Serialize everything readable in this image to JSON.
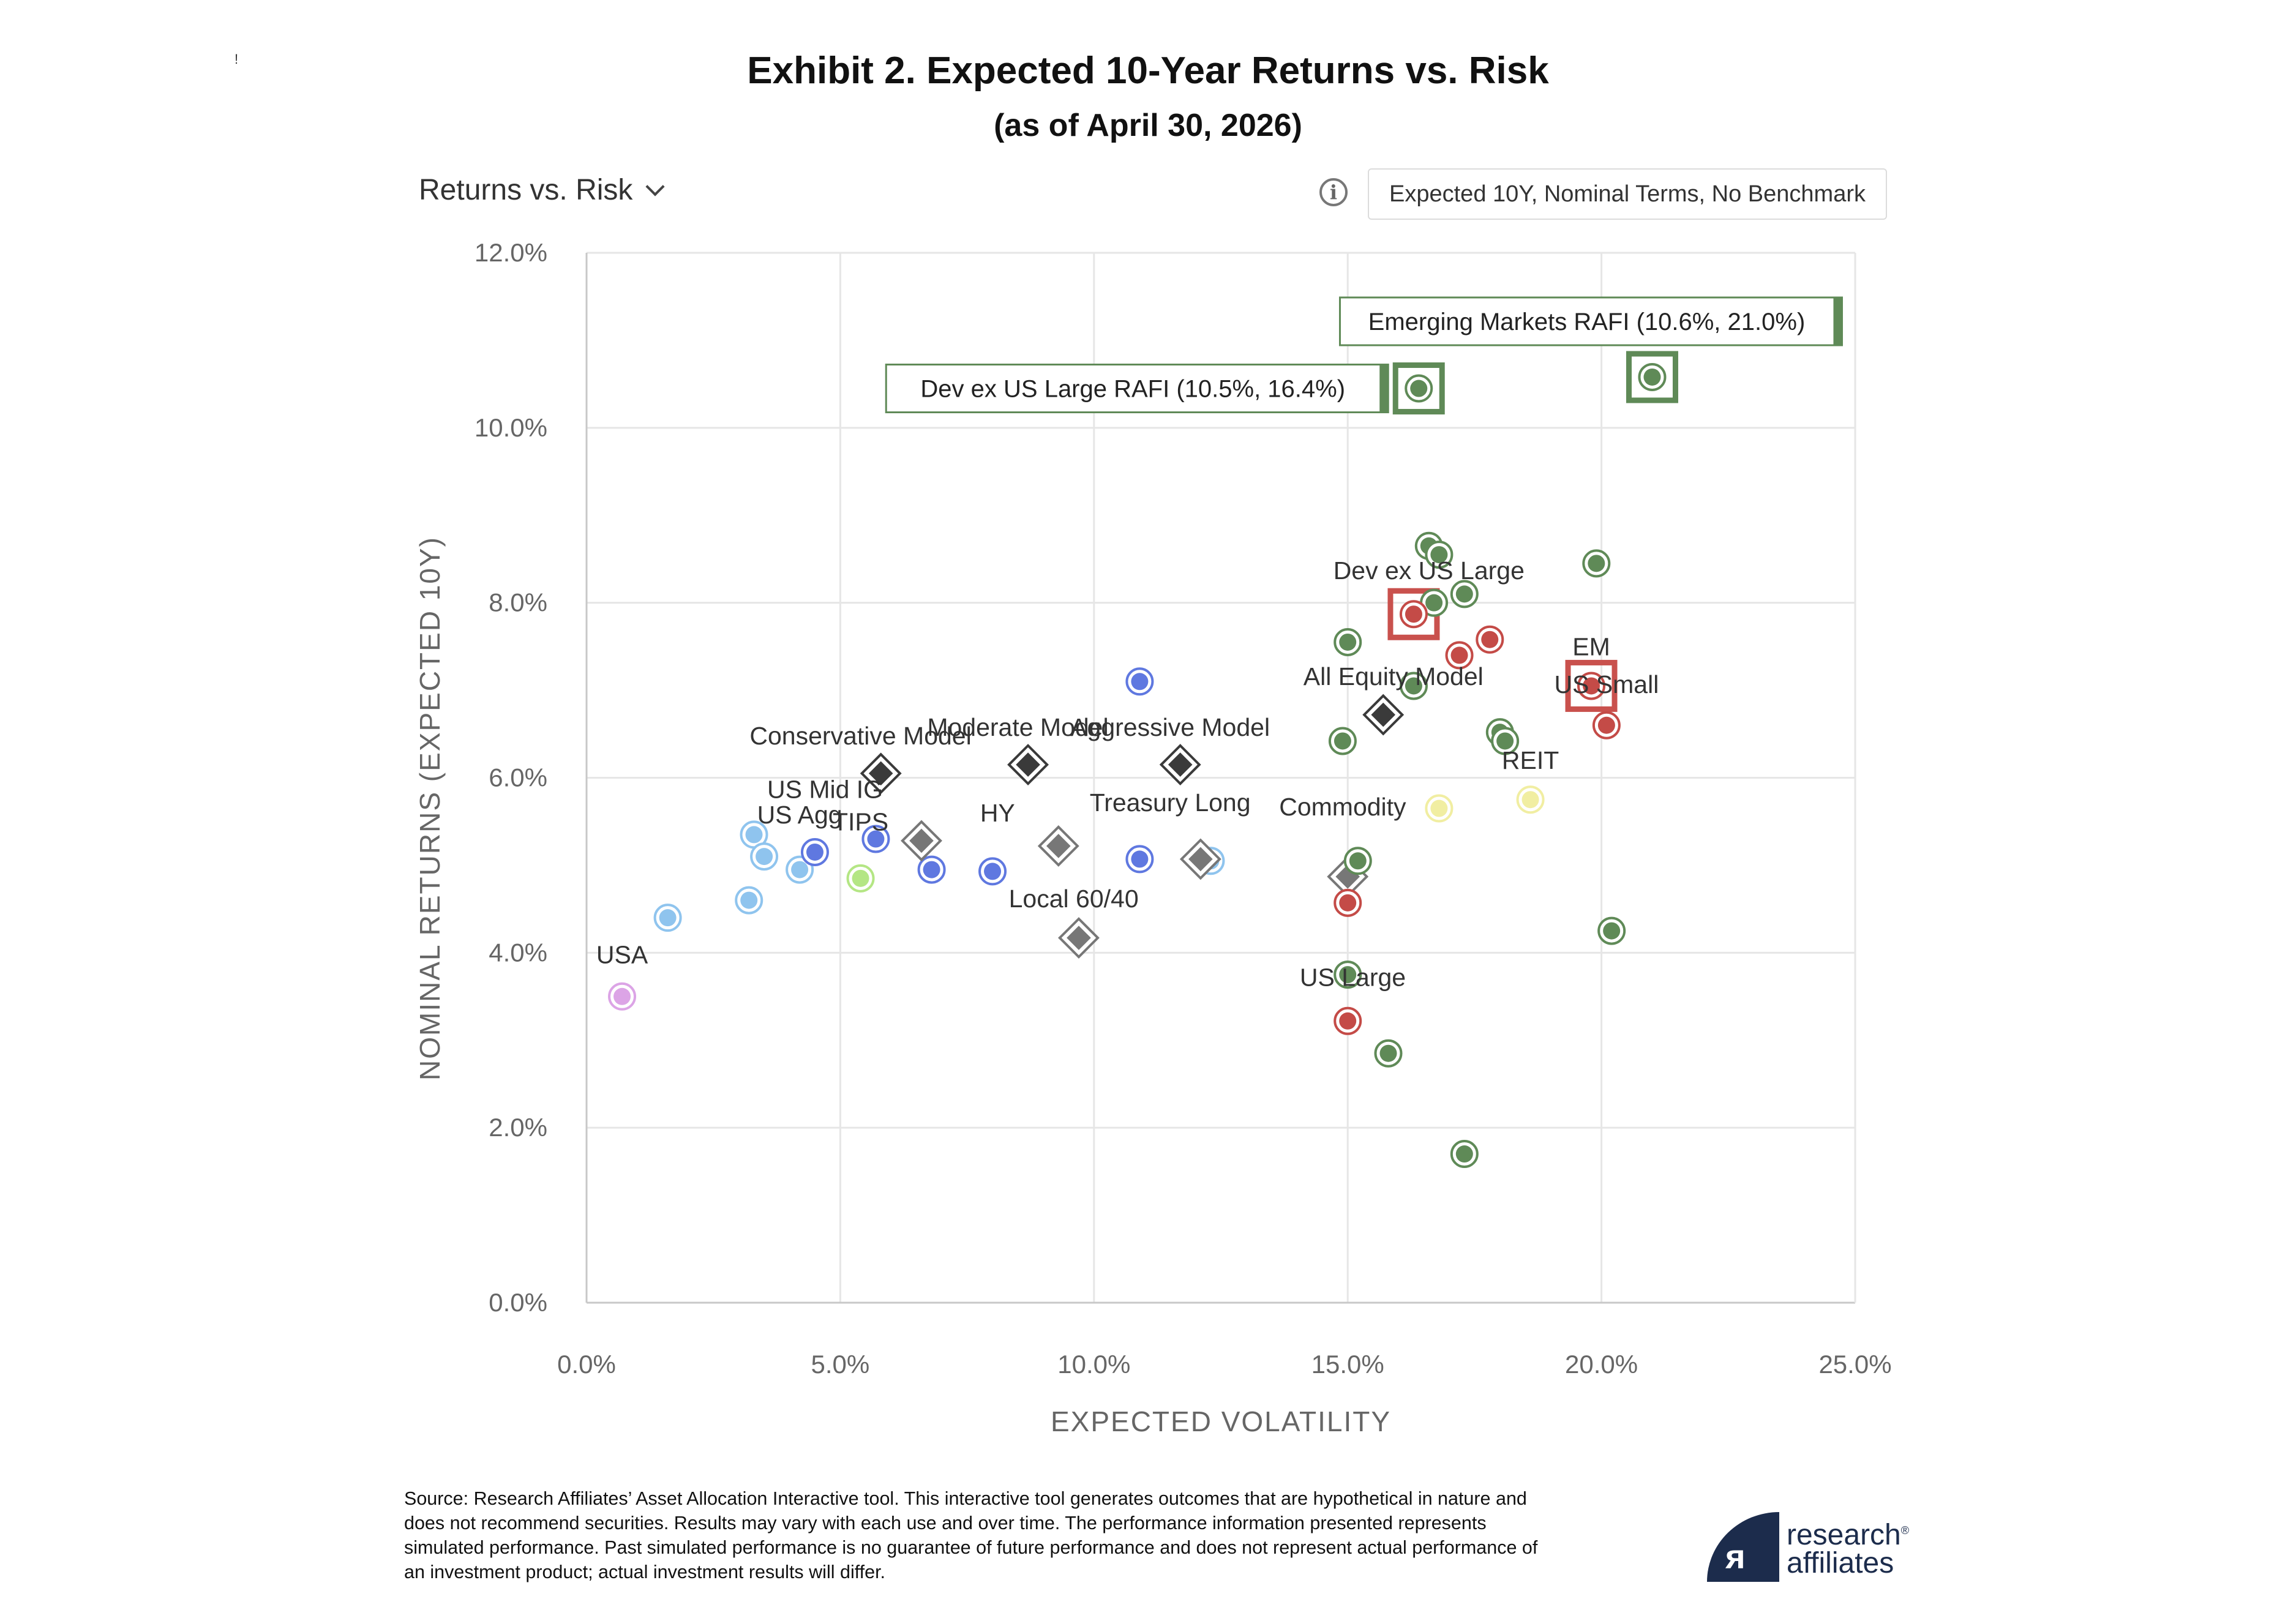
{
  "page": {
    "corner_mark": "!",
    "title": "Exhibit 2. Expected 10-Year Returns vs. Risk",
    "subtitle": "(as of April 30, 2026)",
    "view_select": "Returns vs. Risk",
    "info_icon": "info-icon",
    "settings_label": "Expected 10Y, Nominal Terms, No Benchmark",
    "footnote": "Source: Research Affiliates’ Asset Allocation Interactive tool. This interactive tool generates outcomes that are hypothetical in nature and does not recommend securities. Results may vary with each use and over time. The performance information presented represents simulated performance. Past simulated performance is no guarantee of future performance and does not represent actual performance of an investment product; actual investment results will differ.",
    "logo": {
      "line1": "research",
      "line2": "affiliates",
      "mark": "ᴙ",
      "reg": "®"
    },
    "colors": {
      "equity_green": "#5f8a57",
      "core_red": "#c44b47",
      "bond_blue": "#5f78e0",
      "bond_lightblue": "#8fc4ee",
      "tips_green": "#b4e684",
      "commodity_yellow": "#f1eea2",
      "usa_purple": "#dca4e6",
      "model_dark": "#3a3a3a",
      "model_gray": "#777777",
      "highlight_green": "#5f8a57",
      "highlight_red": "#c9514d"
    }
  },
  "chart_data": {
    "type": "scatter",
    "xlabel": "EXPECTED VOLATILITY",
    "ylabel": "NOMINAL RETURNS (EXPECTED 10Y)",
    "xlim": [
      0,
      25
    ],
    "ylim": [
      0,
      12
    ],
    "xticks": [
      0,
      5,
      10,
      15,
      20,
      25
    ],
    "yticks": [
      0,
      2,
      4,
      6,
      8,
      10,
      12
    ],
    "xtick_labels": [
      "0.0%",
      "5.0%",
      "10.0%",
      "15.0%",
      "20.0%",
      "25.0%"
    ],
    "ytick_labels": [
      "0.0%",
      "2.0%",
      "4.0%",
      "6.0%",
      "8.0%",
      "10.0%",
      "12.0%"
    ],
    "grid": true,
    "points": [
      {
        "x": 0.7,
        "y": 3.5,
        "shape": "circle",
        "color": "usa_purple"
      },
      {
        "x": 1.6,
        "y": 4.4,
        "shape": "circle",
        "color": "bond_lightblue"
      },
      {
        "x": 3.2,
        "y": 4.6,
        "shape": "circle",
        "color": "bond_lightblue"
      },
      {
        "x": 3.3,
        "y": 5.35,
        "shape": "circle",
        "color": "bond_lightblue"
      },
      {
        "x": 3.5,
        "y": 5.1,
        "shape": "circle",
        "color": "bond_lightblue"
      },
      {
        "x": 4.2,
        "y": 4.95,
        "shape": "circle",
        "color": "bond_lightblue"
      },
      {
        "x": 4.5,
        "y": 5.15,
        "shape": "circle",
        "color": "bond_blue"
      },
      {
        "x": 5.4,
        "y": 4.85,
        "shape": "circle",
        "color": "tips_green"
      },
      {
        "x": 5.7,
        "y": 5.3,
        "shape": "circle",
        "color": "bond_blue"
      },
      {
        "x": 6.8,
        "y": 4.95,
        "shape": "circle",
        "color": "bond_blue"
      },
      {
        "x": 8.0,
        "y": 4.93,
        "shape": "circle",
        "color": "bond_blue"
      },
      {
        "x": 10.9,
        "y": 7.1,
        "shape": "circle",
        "color": "bond_blue"
      },
      {
        "x": 10.9,
        "y": 5.07,
        "shape": "circle",
        "color": "bond_blue"
      },
      {
        "x": 12.3,
        "y": 5.05,
        "shape": "circle",
        "color": "bond_lightblue"
      },
      {
        "x": 5.8,
        "y": 6.05,
        "shape": "diamond",
        "color": "model_dark"
      },
      {
        "x": 8.7,
        "y": 6.15,
        "shape": "diamond",
        "color": "model_dark"
      },
      {
        "x": 11.7,
        "y": 6.15,
        "shape": "diamond",
        "color": "model_dark"
      },
      {
        "x": 15.7,
        "y": 6.72,
        "shape": "diamond",
        "color": "model_dark"
      },
      {
        "x": 6.6,
        "y": 5.28,
        "shape": "diamond",
        "color": "model_gray"
      },
      {
        "x": 9.3,
        "y": 5.22,
        "shape": "diamond",
        "color": "model_gray"
      },
      {
        "x": 9.7,
        "y": 4.17,
        "shape": "diamond",
        "color": "model_gray"
      },
      {
        "x": 12.1,
        "y": 5.07,
        "shape": "diamond",
        "color": "model_gray"
      },
      {
        "x": 15.0,
        "y": 4.87,
        "shape": "diamond",
        "color": "model_gray"
      },
      {
        "x": 15.0,
        "y": 7.55,
        "shape": "circle",
        "color": "equity_green"
      },
      {
        "x": 14.9,
        "y": 6.42,
        "shape": "circle",
        "color": "equity_green"
      },
      {
        "x": 15.2,
        "y": 5.05,
        "shape": "circle",
        "color": "equity_green"
      },
      {
        "x": 15.0,
        "y": 3.75,
        "shape": "circle",
        "color": "equity_green"
      },
      {
        "x": 15.8,
        "y": 2.85,
        "shape": "circle",
        "color": "equity_green"
      },
      {
        "x": 16.6,
        "y": 8.65,
        "shape": "circle",
        "color": "equity_green"
      },
      {
        "x": 16.8,
        "y": 8.55,
        "shape": "circle",
        "color": "equity_green"
      },
      {
        "x": 16.7,
        "y": 8.0,
        "shape": "circle",
        "color": "equity_green"
      },
      {
        "x": 17.3,
        "y": 8.1,
        "shape": "circle",
        "color": "equity_green"
      },
      {
        "x": 16.3,
        "y": 7.05,
        "shape": "circle",
        "color": "equity_green"
      },
      {
        "x": 18.0,
        "y": 6.52,
        "shape": "circle",
        "color": "equity_green"
      },
      {
        "x": 18.1,
        "y": 6.42,
        "shape": "circle",
        "color": "equity_green"
      },
      {
        "x": 19.9,
        "y": 8.45,
        "shape": "circle",
        "color": "equity_green"
      },
      {
        "x": 20.2,
        "y": 4.25,
        "shape": "circle",
        "color": "equity_green"
      },
      {
        "x": 17.3,
        "y": 1.7,
        "shape": "circle",
        "color": "equity_green"
      },
      {
        "x": 16.4,
        "y": 10.45,
        "shape": "circle",
        "color": "equity_green"
      },
      {
        "x": 21.0,
        "y": 10.58,
        "shape": "circle",
        "color": "equity_green"
      },
      {
        "x": 16.3,
        "y": 7.87,
        "shape": "circle",
        "color": "core_red"
      },
      {
        "x": 17.2,
        "y": 7.4,
        "shape": "circle",
        "color": "core_red"
      },
      {
        "x": 17.8,
        "y": 7.58,
        "shape": "circle",
        "color": "core_red"
      },
      {
        "x": 19.8,
        "y": 7.05,
        "shape": "circle",
        "color": "core_red"
      },
      {
        "x": 20.1,
        "y": 6.6,
        "shape": "circle",
        "color": "core_red"
      },
      {
        "x": 15.0,
        "y": 4.57,
        "shape": "circle",
        "color": "core_red"
      },
      {
        "x": 15.0,
        "y": 3.22,
        "shape": "circle",
        "color": "core_red"
      },
      {
        "x": 16.8,
        "y": 5.65,
        "shape": "circle",
        "color": "commodity_yellow"
      },
      {
        "x": 18.6,
        "y": 5.75,
        "shape": "circle",
        "color": "commodity_yellow"
      }
    ],
    "labels": [
      {
        "text": "USA",
        "x": 0.7,
        "y": 3.88
      },
      {
        "text": "US Mid IG",
        "x": 4.7,
        "y": 5.77
      },
      {
        "text": "US Agg",
        "x": 4.2,
        "y": 5.48
      },
      {
        "text": "TIPS",
        "x": 5.4,
        "y": 5.4
      },
      {
        "text": "HY",
        "x": 8.1,
        "y": 5.5
      },
      {
        "text": "Conservative Model",
        "x": 5.4,
        "y": 6.38
      },
      {
        "text": "Moderate Model",
        "x": 8.5,
        "y": 6.48
      },
      {
        "text": "Aggressive Model",
        "x": 11.5,
        "y": 6.48
      },
      {
        "text": "Treasury Long",
        "x": 11.5,
        "y": 5.62
      },
      {
        "text": "Commodity",
        "x": 14.9,
        "y": 5.57
      },
      {
        "text": "Local 60/40",
        "x": 9.6,
        "y": 4.52
      },
      {
        "text": "All Equity Model",
        "x": 15.9,
        "y": 7.06
      },
      {
        "text": "Dev ex US Large",
        "x": 16.6,
        "y": 8.27
      },
      {
        "text": "EM",
        "x": 19.8,
        "y": 7.4
      },
      {
        "text": "US Small",
        "x": 20.1,
        "y": 6.97
      },
      {
        "text": "REIT",
        "x": 18.6,
        "y": 6.1
      },
      {
        "text": "US Large",
        "x": 15.1,
        "y": 3.62
      }
    ],
    "highlights": [
      {
        "x": 16.4,
        "y": 10.45,
        "color": "highlight_green"
      },
      {
        "x": 21.0,
        "y": 10.58,
        "color": "highlight_green"
      },
      {
        "x": 16.3,
        "y": 7.87,
        "color": "highlight_red"
      },
      {
        "x": 19.8,
        "y": 7.05,
        "color": "highlight_red"
      }
    ],
    "callouts": [
      {
        "text": "Dev ex US Large RAFI (10.5%, 16.4%)",
        "x": 16.4,
        "y": 10.45,
        "side": "left"
      },
      {
        "text": "Emerging Markets RAFI (10.6%, 21.0%)",
        "x": 21.0,
        "y": 10.58,
        "side": "above"
      }
    ]
  }
}
